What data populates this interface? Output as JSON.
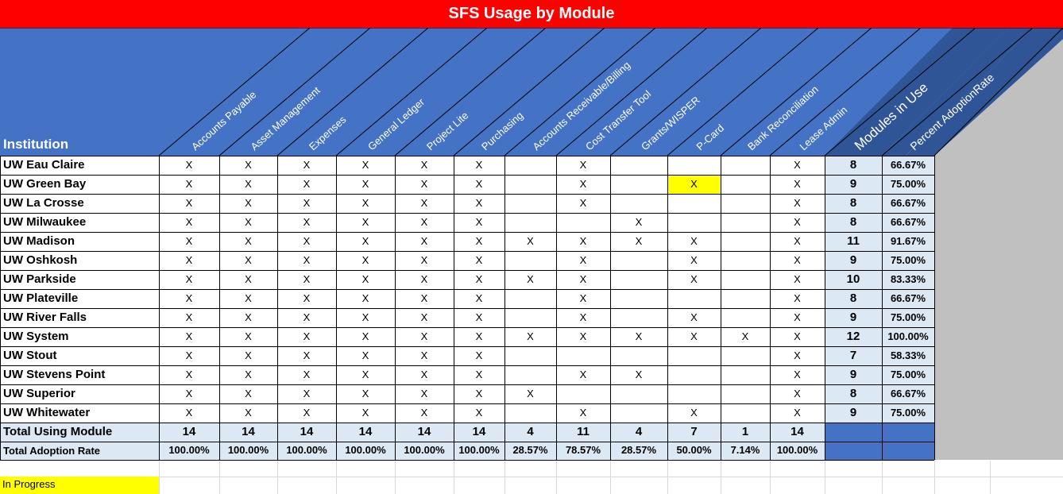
{
  "title": "SFS Usage by Module",
  "header": {
    "institution_label": "Institution",
    "modules": [
      "Accounts Payable",
      "Asset Management",
      "Expenses",
      "General Ledger",
      "Project Lite",
      "Purchasing",
      "Accounts Receivable/Billing",
      "Cost Transfer Tool",
      "Grants/WISPER",
      "P-Card",
      "Bank Reconciliation",
      "Lease Admin"
    ],
    "modules_in_use": "Modules in Use",
    "percent_adoption": "Percent AdoptionRate"
  },
  "rows": [
    {
      "name": "UW Eau Claire",
      "marks": [
        1,
        1,
        1,
        1,
        1,
        1,
        0,
        1,
        0,
        0,
        0,
        1
      ],
      "count": "8",
      "pct": "66.67%"
    },
    {
      "name": "UW Green Bay",
      "marks": [
        1,
        1,
        1,
        1,
        1,
        1,
        0,
        1,
        0,
        2,
        0,
        1
      ],
      "count": "9",
      "pct": "75.00%"
    },
    {
      "name": "UW La Crosse",
      "marks": [
        1,
        1,
        1,
        1,
        1,
        1,
        0,
        1,
        0,
        0,
        0,
        1
      ],
      "count": "8",
      "pct": "66.67%"
    },
    {
      "name": "UW Milwaukee",
      "marks": [
        1,
        1,
        1,
        1,
        1,
        1,
        0,
        0,
        1,
        0,
        0,
        1
      ],
      "count": "8",
      "pct": "66.67%"
    },
    {
      "name": "UW Madison",
      "marks": [
        1,
        1,
        1,
        1,
        1,
        1,
        1,
        1,
        1,
        1,
        0,
        1
      ],
      "count": "11",
      "pct": "91.67%"
    },
    {
      "name": "UW Oshkosh",
      "marks": [
        1,
        1,
        1,
        1,
        1,
        1,
        0,
        1,
        0,
        1,
        0,
        1
      ],
      "count": "9",
      "pct": "75.00%"
    },
    {
      "name": "UW Parkside",
      "marks": [
        1,
        1,
        1,
        1,
        1,
        1,
        1,
        1,
        0,
        1,
        0,
        1
      ],
      "count": "10",
      "pct": "83.33%"
    },
    {
      "name": "UW Plateville",
      "marks": [
        1,
        1,
        1,
        1,
        1,
        1,
        0,
        1,
        0,
        0,
        0,
        1
      ],
      "count": "8",
      "pct": "66.67%"
    },
    {
      "name": "UW River Falls",
      "marks": [
        1,
        1,
        1,
        1,
        1,
        1,
        0,
        1,
        0,
        1,
        0,
        1
      ],
      "count": "9",
      "pct": "75.00%"
    },
    {
      "name": "UW System",
      "marks": [
        1,
        1,
        1,
        1,
        1,
        1,
        1,
        1,
        1,
        1,
        1,
        1
      ],
      "count": "12",
      "pct": "100.00%"
    },
    {
      "name": "UW Stout",
      "marks": [
        1,
        1,
        1,
        1,
        1,
        1,
        0,
        0,
        0,
        0,
        0,
        1
      ],
      "count": "7",
      "pct": "58.33%"
    },
    {
      "name": "UW Stevens Point",
      "marks": [
        1,
        1,
        1,
        1,
        1,
        1,
        0,
        1,
        1,
        0,
        0,
        1
      ],
      "count": "9",
      "pct": "75.00%"
    },
    {
      "name": "UW Superior",
      "marks": [
        1,
        1,
        1,
        1,
        1,
        1,
        1,
        0,
        0,
        0,
        0,
        1
      ],
      "count": "8",
      "pct": "66.67%"
    },
    {
      "name": "UW Whitewater",
      "marks": [
        1,
        1,
        1,
        1,
        1,
        1,
        0,
        1,
        0,
        1,
        0,
        1
      ],
      "count": "9",
      "pct": "75.00%"
    }
  ],
  "mark_text": "X",
  "totals": {
    "label": "Total Using Module",
    "values": [
      "14",
      "14",
      "14",
      "14",
      "14",
      "14",
      "4",
      "11",
      "4",
      "7",
      "1",
      "14"
    ]
  },
  "adoption": {
    "label": "Total Adoption Rate",
    "values": [
      "100.00%",
      "100.00%",
      "100.00%",
      "100.00%",
      "100.00%",
      "100.00%",
      "28.57%",
      "78.57%",
      "28.57%",
      "50.00%",
      "7.14%",
      "100.00%"
    ]
  },
  "legend": {
    "in_progress": "In Progress"
  },
  "colors": {
    "title_bg": "#ff0000",
    "header_blue": "#4472c4",
    "header_dark_blue": "#2f5597",
    "summary_light": "#dde8f5",
    "total_fill": "#4472c4",
    "in_progress": "#ffff00",
    "gray_wedge": "#c0c0c0"
  }
}
